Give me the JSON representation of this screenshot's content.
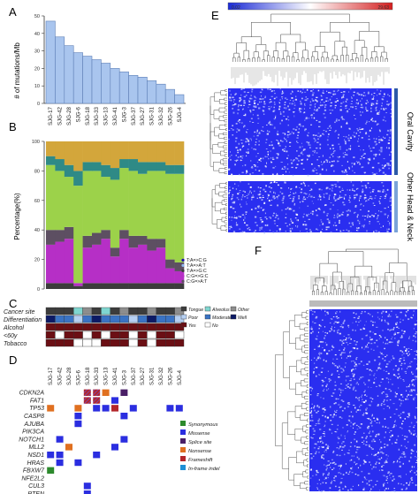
{
  "panel_labels": {
    "a": "A",
    "b": "B",
    "c": "C",
    "d": "D",
    "e": "E",
    "f": "F"
  },
  "samples": [
    "SJG-17",
    "SJG-42",
    "SJG-28",
    "SJG-6",
    "SJG-18",
    "SJG-33",
    "SJG-13",
    "SJG-41",
    "SJG-3",
    "SJG-37",
    "SJG-27",
    "SJG-31",
    "SJG-32",
    "SJG-26",
    "SJG-4"
  ],
  "chart_data": [
    {
      "type": "bar",
      "panel": "A",
      "categories": [
        "SJG-17",
        "SJG-42",
        "SJG-28",
        "SJG-6",
        "SJG-18",
        "SJG-33",
        "SJG-13",
        "SJG-41",
        "SJG-3",
        "SJG-37",
        "SJG-27",
        "SJG-31",
        "SJG-32",
        "SJG-26",
        "SJG-4"
      ],
      "values": [
        47,
        38,
        33,
        29,
        27,
        25,
        23,
        20,
        18,
        16,
        15,
        13,
        11,
        8,
        5
      ],
      "ylabel": "# of mutations/Mb",
      "yticks": [
        0,
        10,
        20,
        30,
        40,
        50
      ],
      "ylim": [
        0,
        50
      ],
      "bar_color": "#a9c5ee"
    },
    {
      "type": "bar",
      "panel": "B",
      "stacked": true,
      "categories": [
        "SJG-17",
        "SJG-42",
        "SJG-28",
        "SJG-6",
        "SJG-18",
        "SJG-33",
        "SJG-13",
        "SJG-41",
        "SJG-3",
        "SJG-37",
        "SJG-27",
        "SJG-31",
        "SJG-32",
        "SJG-26",
        "SJG-4"
      ],
      "ylabel": "Percentage(%)",
      "yticks": [
        0,
        20,
        40,
        60,
        80,
        100
      ],
      "ylim": [
        0,
        100
      ],
      "series": [
        {
          "name": "T:A=>C:G",
          "color": "#1a0dab",
          "values": [
            0,
            0,
            0,
            0,
            0,
            0,
            0,
            0,
            0,
            0,
            0,
            0,
            0,
            0,
            0
          ]
        },
        {
          "name": "T:A=>A:T",
          "color": "#8fb8ec",
          "values": [
            0,
            0,
            0,
            0,
            0,
            0,
            0,
            0,
            0,
            0,
            0,
            0,
            0,
            0,
            0
          ]
        },
        {
          "name": "T:A=>G:C",
          "color": "#3c3c3c",
          "values": [
            4,
            4,
            4,
            2,
            4,
            4,
            4,
            4,
            4,
            4,
            4,
            4,
            4,
            4,
            4
          ]
        },
        {
          "name": "C:G=>G:C",
          "color": "#b62fc6",
          "values": [
            26,
            28,
            30,
            2,
            24,
            26,
            30,
            18,
            30,
            24,
            26,
            22,
            24,
            10,
            8
          ]
        },
        {
          "name": "C:G=>A:T",
          "color": "#5d4f62",
          "values": [
            10,
            8,
            8,
            0,
            8,
            8,
            6,
            6,
            6,
            8,
            6,
            8,
            6,
            6,
            6
          ]
        },
        {
          "name": "C:G=>T:A",
          "color": "#9cd24a",
          "values": [
            44,
            40,
            34,
            66,
            44,
            42,
            36,
            46,
            42,
            44,
            42,
            46,
            46,
            58,
            60
          ]
        },
        {
          "name": "",
          "color": "#2f8a86",
          "values": [
            6,
            8,
            8,
            10,
            6,
            6,
            8,
            8,
            6,
            8,
            8,
            6,
            6,
            6,
            6
          ]
        },
        {
          "name": "",
          "color": "#d3a63b",
          "values": [
            10,
            12,
            16,
            20,
            14,
            14,
            16,
            18,
            12,
            12,
            14,
            14,
            14,
            16,
            16
          ]
        }
      ],
      "legend": [
        "T:A=>C:G",
        "T:A=>A:T",
        "T:A=>G:C",
        "C:G=>G:C",
        "C:G=>A:T"
      ]
    }
  ],
  "panel_c": {
    "rows": [
      "Cancer site",
      "Differentiation",
      "Alcohol",
      "<60y",
      "Tobacco"
    ],
    "legend": [
      {
        "label": "Tongue",
        "color": "#3c3c3c"
      },
      {
        "label": "Alveolus",
        "color": "#7fd6d0"
      },
      {
        "label": "Other",
        "color": "#8d8d8d"
      },
      {
        "label": "Poor",
        "color": "#b6d0f2"
      },
      {
        "label": "Moderate",
        "color": "#3a73c4"
      },
      {
        "label": "Well",
        "color": "#0c1a66"
      },
      {
        "label": "Yes",
        "color": "#6b0f14"
      },
      {
        "label": "No",
        "color": "#ffffff"
      }
    ],
    "site": [
      "Tongue",
      "Tongue",
      "Tongue",
      "Alveolus",
      "Other",
      "Tongue",
      "Alveolus",
      "Tongue",
      "Other",
      "Tongue",
      "Tongue",
      "Other",
      "Tongue",
      "Tongue",
      "Other"
    ],
    "diff": [
      "Well",
      "Moderate",
      "Moderate",
      "Poor",
      "Moderate",
      "Well",
      "Moderate",
      "Moderate",
      "Moderate",
      "Poor",
      "Moderate",
      "Well",
      "Moderate",
      "Moderate",
      "Poor"
    ],
    "alcohol": [
      "Yes",
      "Yes",
      "Yes",
      "Yes",
      "Yes",
      "Yes",
      "Yes",
      "Yes",
      "Yes",
      "Yes",
      "Yes",
      "Yes",
      "Yes",
      "Yes",
      "Yes"
    ],
    "age": [
      "Yes",
      "No",
      "Yes",
      "Yes",
      "No",
      "Yes",
      "No",
      "Yes",
      "Yes",
      "No",
      "Yes",
      "No",
      "Yes",
      "Yes",
      "No"
    ],
    "tobacco": [
      "Yes",
      "Yes",
      "Yes",
      "No",
      "No",
      "No",
      "Yes",
      "Yes",
      "Yes",
      "No",
      "Yes",
      "No",
      "Yes",
      "Yes",
      "Yes"
    ]
  },
  "panel_d": {
    "genes": [
      "CDKN2A",
      "FAT1",
      "TP53",
      "CASP8",
      "AJUBA",
      "PIK3CA",
      "NOTCH1",
      "MLL2",
      "NSD1",
      "HRAS",
      "FBXW7",
      "NFE2L2",
      "CUL3",
      "PTEN"
    ],
    "legend": [
      {
        "label": "Synonymous",
        "color": "#2d8a2d"
      },
      {
        "label": "Missense",
        "color": "#2b2ee0"
      },
      {
        "label": "Splice site",
        "color": "#4a1f66"
      },
      {
        "label": "Nonsense",
        "color": "#e07020"
      },
      {
        "label": "Frameshift",
        "color": "#b3262a"
      },
      {
        "label": "In-frame indel",
        "color": "#1e8fd6"
      }
    ],
    "cells": [
      {
        "g": 0,
        "s": 4,
        "t": "Frameshift"
      },
      {
        "g": 0,
        "s": 5,
        "t": "Frameshift"
      },
      {
        "g": 0,
        "s": 6,
        "t": "Nonsense"
      },
      {
        "g": 0,
        "s": 8,
        "t": "Splice site"
      },
      {
        "g": 1,
        "s": 4,
        "t": "Frameshift"
      },
      {
        "g": 1,
        "s": 5,
        "t": "Frameshift"
      },
      {
        "g": 1,
        "s": 7,
        "t": "Missense"
      },
      {
        "g": 2,
        "s": 0,
        "t": "Nonsense"
      },
      {
        "g": 2,
        "s": 3,
        "t": "Nonsense"
      },
      {
        "g": 2,
        "s": 5,
        "t": "Missense"
      },
      {
        "g": 2,
        "s": 6,
        "t": "Missense"
      },
      {
        "g": 2,
        "s": 7,
        "t": "Frameshift"
      },
      {
        "g": 2,
        "s": 9,
        "t": "Missense"
      },
      {
        "g": 2,
        "s": 13,
        "t": "Missense"
      },
      {
        "g": 2,
        "s": 14,
        "t": "Missense"
      },
      {
        "g": 3,
        "s": 3,
        "t": "Missense"
      },
      {
        "g": 3,
        "s": 8,
        "t": "Missense"
      },
      {
        "g": 4,
        "s": 3,
        "t": "Missense"
      },
      {
        "g": 6,
        "s": 1,
        "t": "Missense"
      },
      {
        "g": 6,
        "s": 8,
        "t": "Missense"
      },
      {
        "g": 7,
        "s": 2,
        "t": "Nonsense"
      },
      {
        "g": 7,
        "s": 7,
        "t": "Missense"
      },
      {
        "g": 8,
        "s": 0,
        "t": "Missense"
      },
      {
        "g": 8,
        "s": 1,
        "t": "Missense"
      },
      {
        "g": 8,
        "s": 5,
        "t": "Missense"
      },
      {
        "g": 9,
        "s": 1,
        "t": "Missense"
      },
      {
        "g": 9,
        "s": 3,
        "t": "Missense"
      },
      {
        "g": 10,
        "s": 0,
        "t": "Synonymous"
      },
      {
        "g": 12,
        "s": 4,
        "t": "Missense"
      },
      {
        "g": 13,
        "s": 4,
        "t": "Missense"
      }
    ]
  },
  "panel_e": {
    "scale_min": "0.02",
    "scale_max": "29.63",
    "label_oral": "Oral Cavity",
    "label_other": "Other Head & Neck"
  }
}
